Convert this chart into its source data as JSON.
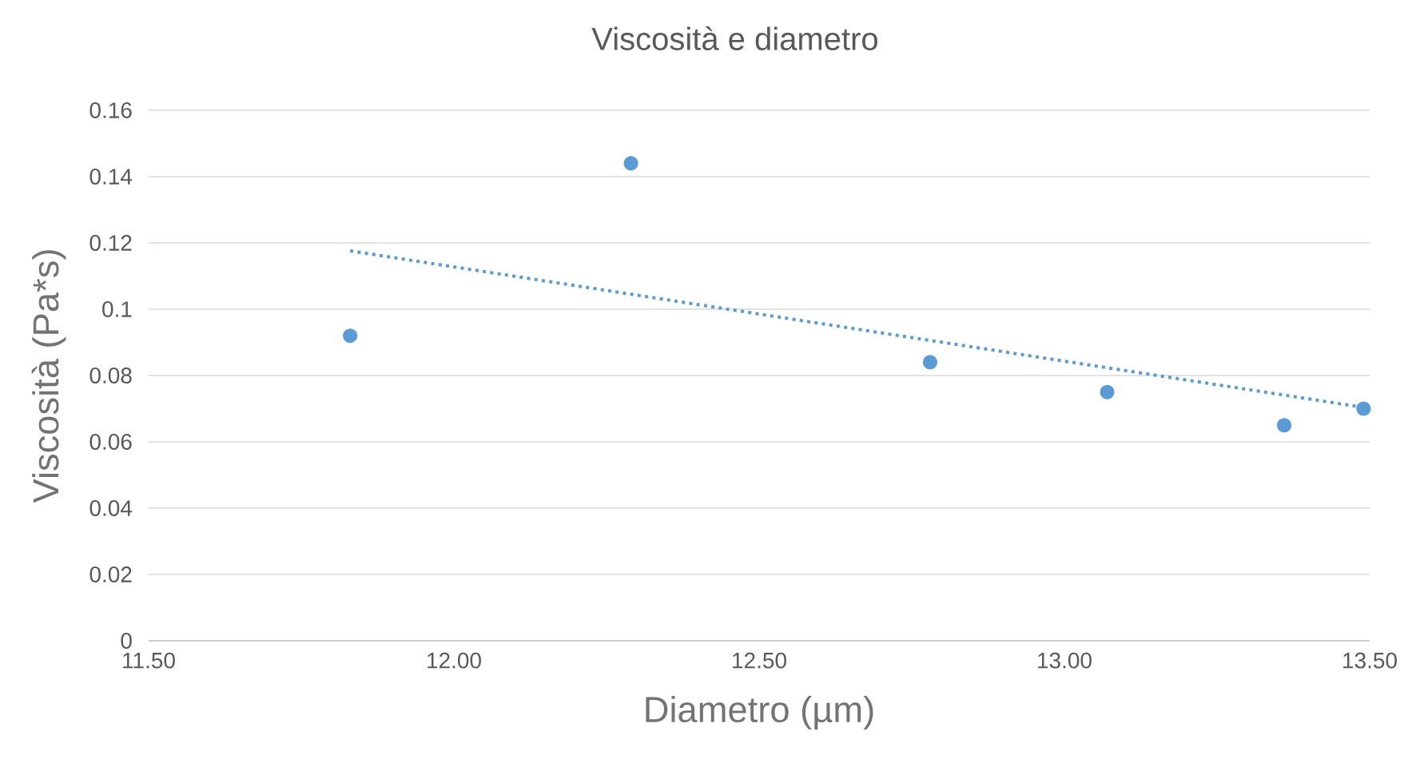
{
  "chart_data": {
    "type": "scatter",
    "title": "Viscosità e diametro",
    "xlabel": "Diametro (µm)",
    "ylabel": "Viscosità (Pa*s)",
    "xlim": [
      11.5,
      13.5
    ],
    "xticks": [
      {
        "value": 11.5,
        "label": "11.50"
      },
      {
        "value": 12.0,
        "label": "12.00"
      },
      {
        "value": 12.5,
        "label": "12.50"
      },
      {
        "value": 13.0,
        "label": "13.00"
      },
      {
        "value": 13.5,
        "label": "13.50"
      }
    ],
    "ylim": [
      0,
      0.16
    ],
    "yticks": [
      0,
      0.02,
      0.04,
      0.06,
      0.08,
      0.1,
      0.12,
      0.14,
      0.16
    ],
    "grid": "y",
    "series": [
      {
        "color": "#5b9bd5",
        "marker": "circle",
        "x": [
          11.83,
          12.29,
          12.78,
          13.07,
          13.36,
          13.49
        ],
        "values": [
          0.092,
          0.144,
          0.084,
          0.075,
          0.065,
          0.07
        ]
      },
      {
        "type": "line",
        "color": "#5b9bd5",
        "line_style": "dotted",
        "marker": "none",
        "x": [
          11.83,
          13.49
        ],
        "values": [
          0.1176,
          0.0704
        ]
      }
    ]
  }
}
